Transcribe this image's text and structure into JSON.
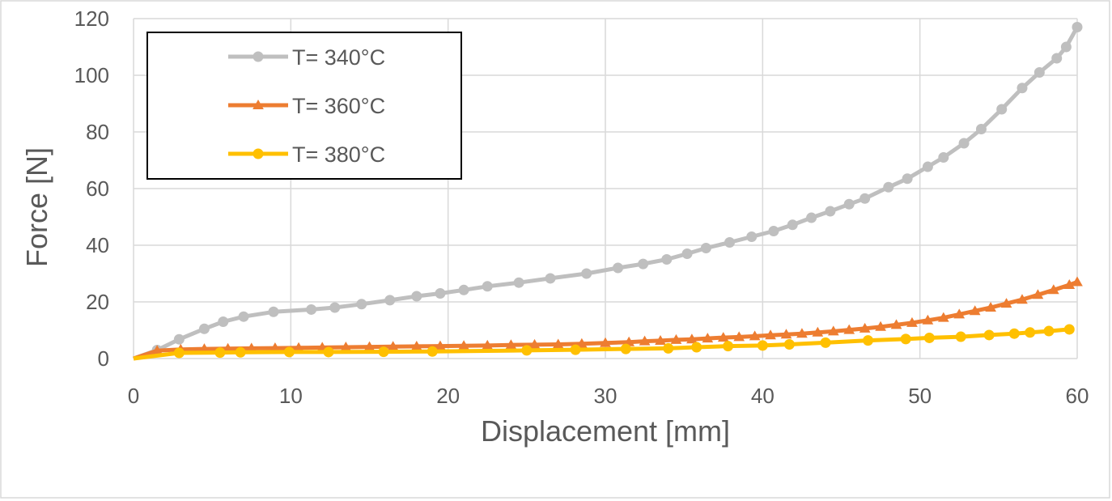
{
  "chart_data": {
    "type": "line",
    "title": "",
    "xlabel": "Displacement [mm]",
    "ylabel": "Force [N]",
    "xlim": [
      0,
      60
    ],
    "ylim": [
      0,
      120
    ],
    "xticks": [
      "0",
      "10",
      "20",
      "30",
      "40",
      "50",
      "60"
    ],
    "yticks": [
      "0",
      "20",
      "40",
      "60",
      "80",
      "100",
      "120"
    ],
    "grid": true,
    "legend_position": "top-left",
    "series": [
      {
        "name": "T= 340°C",
        "color": "#BFBFBF",
        "marker": "circle",
        "x": [
          0,
          1.5,
          2.9,
          4.5,
          5.7,
          7.0,
          8.9,
          11.3,
          12.8,
          14.5,
          16.3,
          18.0,
          19.5,
          21.0,
          22.5,
          24.5,
          26.5,
          28.8,
          30.8,
          32.4,
          33.9,
          35.2,
          36.4,
          37.9,
          39.3,
          40.7,
          41.9,
          43.1,
          44.3,
          45.5,
          46.5,
          48.0,
          49.2,
          50.5,
          51.5,
          52.8,
          53.9,
          55.2,
          56.5,
          57.6,
          58.7,
          59.3,
          60.0
        ],
        "y": [
          0,
          3.0,
          6.8,
          10.5,
          13.0,
          14.8,
          16.5,
          17.3,
          18.0,
          19.2,
          20.6,
          22.0,
          23.0,
          24.2,
          25.5,
          26.8,
          28.3,
          30.0,
          32.0,
          33.4,
          35.0,
          37.0,
          39.0,
          41.0,
          43.0,
          45.0,
          47.2,
          49.7,
          52.0,
          54.5,
          56.5,
          60.5,
          63.5,
          67.7,
          71.0,
          76.0,
          81.0,
          88.0,
          95.5,
          101.0,
          106.0,
          110.0,
          117.0
        ],
        "values": [
          0,
          3.0,
          6.8,
          10.5,
          13.0,
          14.8,
          16.5,
          17.3,
          18.0,
          19.2,
          20.6,
          22.0,
          23.0,
          24.2,
          25.5,
          26.8,
          28.3,
          30.0,
          32.0,
          33.4,
          35.0,
          37.0,
          39.0,
          41.0,
          43.0,
          45.0,
          47.2,
          49.7,
          52.0,
          54.5,
          56.5,
          60.5,
          63.5,
          67.7,
          71.0,
          76.0,
          81.0,
          88.0,
          95.5,
          101.0,
          106.0,
          110.0,
          117.0
        ]
      },
      {
        "name": "T= 360°C",
        "color": "#ED7D31",
        "marker": "triangle",
        "x": [
          0,
          1.5,
          3.0,
          4.5,
          6.0,
          7.5,
          9.0,
          10.5,
          12.0,
          13.5,
          15.0,
          16.5,
          18.0,
          19.5,
          21.0,
          22.5,
          24.0,
          25.5,
          27.0,
          28.5,
          30.0,
          31.5,
          32.5,
          33.5,
          34.5,
          35.5,
          36.5,
          37.5,
          38.5,
          39.5,
          40.5,
          41.5,
          42.5,
          43.5,
          44.5,
          45.5,
          46.5,
          47.5,
          48.5,
          49.5,
          50.5,
          51.5,
          52.5,
          53.5,
          54.5,
          55.5,
          56.5,
          57.5,
          58.5,
          59.5,
          60.0
        ],
        "y": [
          0,
          2.8,
          3.2,
          3.4,
          3.5,
          3.6,
          3.7,
          3.8,
          3.9,
          4.0,
          4.1,
          4.2,
          4.3,
          4.4,
          4.5,
          4.6,
          4.8,
          4.9,
          5.0,
          5.2,
          5.5,
          5.8,
          6.1,
          6.3,
          6.6,
          6.8,
          7.1,
          7.4,
          7.6,
          7.9,
          8.2,
          8.5,
          8.8,
          9.2,
          9.6,
          10.1,
          10.6,
          11.2,
          11.9,
          12.6,
          13.5,
          14.4,
          15.6,
          16.8,
          18.0,
          19.4,
          20.8,
          22.5,
          24.2,
          26.0,
          27.0
        ],
        "values": [
          0,
          2.8,
          3.2,
          3.4,
          3.5,
          3.6,
          3.7,
          3.8,
          3.9,
          4.0,
          4.1,
          4.2,
          4.3,
          4.4,
          4.5,
          4.6,
          4.8,
          4.9,
          5.0,
          5.2,
          5.5,
          5.8,
          6.1,
          6.3,
          6.6,
          6.8,
          7.1,
          7.4,
          7.6,
          7.9,
          8.2,
          8.5,
          8.8,
          9.2,
          9.6,
          10.1,
          10.6,
          11.2,
          11.9,
          12.6,
          13.5,
          14.4,
          15.6,
          16.8,
          18.0,
          19.4,
          20.8,
          22.5,
          24.2,
          26.0,
          27.0
        ]
      },
      {
        "name": "T= 380°C",
        "color": "#FFC000",
        "marker": "circle",
        "x": [
          0,
          2.9,
          5.5,
          6.8,
          9.9,
          12.4,
          15.9,
          19.0,
          25.0,
          28.1,
          31.3,
          34.0,
          35.8,
          37.8,
          40.0,
          41.7,
          44.0,
          46.7,
          49.1,
          50.6,
          52.6,
          54.4,
          56.0,
          57.0,
          58.2,
          59.5
        ],
        "y": [
          0,
          2.0,
          2.1,
          2.2,
          2.3,
          2.3,
          2.4,
          2.5,
          2.9,
          3.1,
          3.4,
          3.6,
          4.0,
          4.4,
          4.6,
          5.0,
          5.6,
          6.4,
          6.9,
          7.3,
          7.7,
          8.3,
          8.8,
          9.2,
          9.7,
          10.3
        ],
        "values": [
          0,
          2.0,
          2.1,
          2.2,
          2.3,
          2.3,
          2.4,
          2.5,
          2.9,
          3.1,
          3.4,
          3.6,
          4.0,
          4.4,
          4.6,
          5.0,
          5.6,
          6.4,
          6.9,
          7.3,
          7.7,
          8.3,
          8.8,
          9.2,
          9.7,
          10.3
        ]
      }
    ]
  }
}
